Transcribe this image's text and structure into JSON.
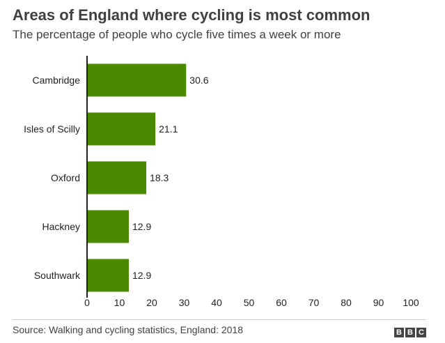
{
  "chart_data": {
    "type": "bar",
    "orientation": "horizontal",
    "title": "Areas of England where cycling is most common",
    "subtitle": "The percentage of people who cycle five times a week or more",
    "categories": [
      "Cambridge",
      "Isles of Scilly",
      "Oxford",
      "Hackney",
      "Southwark"
    ],
    "values": [
      30.6,
      21.1,
      18.3,
      12.9,
      12.9
    ],
    "value_labels": [
      "30.6",
      "21.1",
      "18.3",
      "12.9",
      "12.9"
    ],
    "xlim": [
      0,
      100
    ],
    "xticks": [
      "0",
      "10",
      "20",
      "30",
      "40",
      "50",
      "60",
      "70",
      "80",
      "90",
      "100"
    ],
    "grid": false,
    "bar_color": "#4a8a00",
    "source": "Source: Walking and cycling statistics, England: 2018"
  },
  "brand": {
    "letters": [
      "B",
      "B",
      "C"
    ]
  }
}
